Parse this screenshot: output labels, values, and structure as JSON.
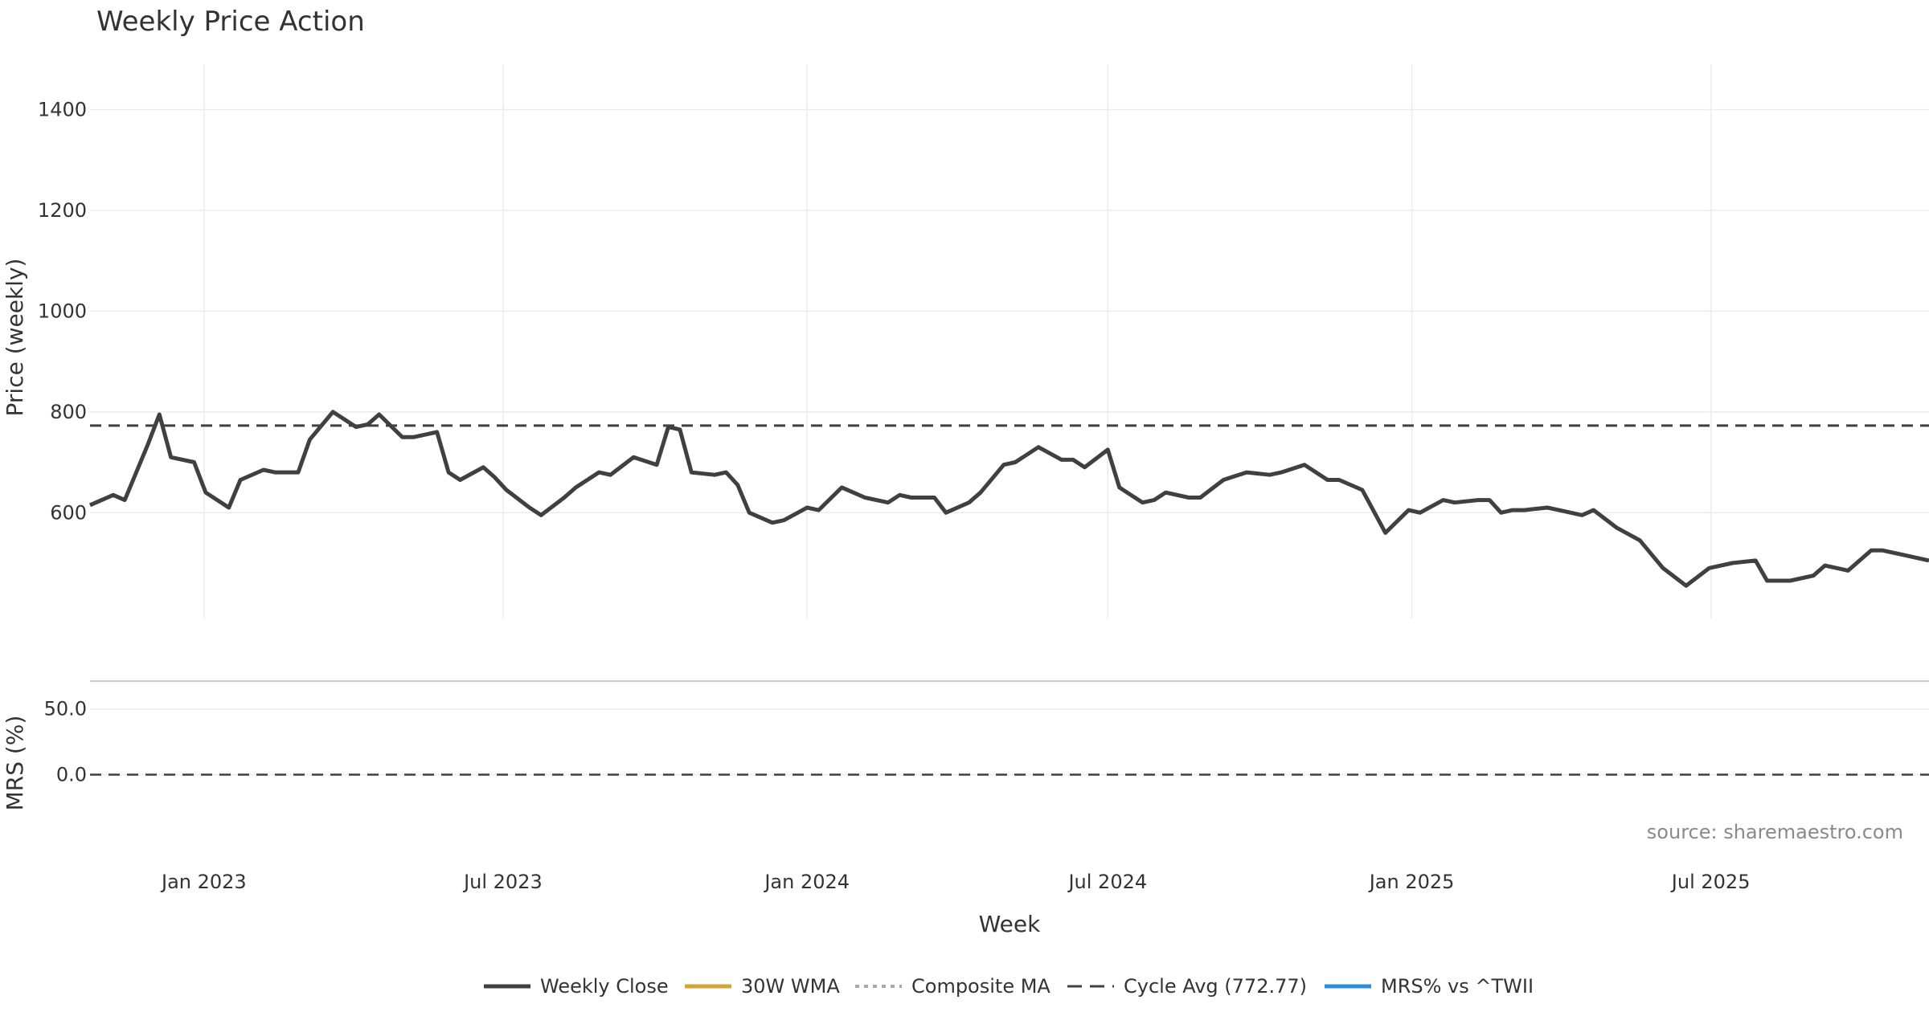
{
  "chart_data": {
    "type": "line",
    "title": "Weekly Price Action",
    "xlabel": "Week",
    "source": "source: sharemaestro.com",
    "x_ticks": [
      "Jan 2023",
      "Jul 2023",
      "Jan 2024",
      "Jul 2024",
      "Jan 2025",
      "Jul 2025"
    ],
    "x_range": [
      "2022-10-24",
      "2025-11-10"
    ],
    "price_panel": {
      "ylabel": "Price (weekly)",
      "ylim": [
        390,
        1490
      ],
      "y_ticks": [
        600,
        800,
        1000,
        1200,
        1400
      ],
      "grid": true,
      "cycle_avg": 772.77
    },
    "mrs_panel": {
      "ylabel": "MRS (%)",
      "ylim": [
        -40,
        70
      ],
      "y_ticks": [
        0.0,
        50.0
      ],
      "zero_line": 0
    },
    "legend": {
      "placement": "bottom-center",
      "items": [
        {
          "label": "Weekly Close",
          "color": "#404040",
          "style": "solid"
        },
        {
          "label": "30W WMA",
          "color": "#d6a431",
          "style": "solid"
        },
        {
          "label": "Composite MA",
          "color": "#aaaaaa",
          "style": "dotted"
        },
        {
          "label": "Cycle Avg (772.77)",
          "color": "#404040",
          "style": "dashed"
        },
        {
          "label": "MRS% vs ^TWII",
          "color": "#2b8ce0",
          "style": "solid"
        }
      ]
    },
    "series": [
      {
        "name": "Weekly Close",
        "color": "#404040",
        "points": [
          [
            "2022-10-24",
            615
          ],
          [
            "2022-11-07",
            635
          ],
          [
            "2022-11-14",
            625
          ],
          [
            "2022-11-28",
            735
          ],
          [
            "2022-12-05",
            795
          ],
          [
            "2022-12-12",
            710
          ],
          [
            "2022-12-26",
            700
          ],
          [
            "2023-01-02",
            640
          ],
          [
            "2023-01-16",
            610
          ],
          [
            "2023-01-23",
            665
          ],
          [
            "2023-02-06",
            685
          ],
          [
            "2023-02-13",
            680
          ],
          [
            "2023-02-27",
            680
          ],
          [
            "2023-03-06",
            745
          ],
          [
            "2023-03-20",
            800
          ],
          [
            "2023-04-03",
            770
          ],
          [
            "2023-04-10",
            775
          ],
          [
            "2023-04-17",
            795
          ],
          [
            "2023-05-01",
            750
          ],
          [
            "2023-05-08",
            750
          ],
          [
            "2023-05-22",
            760
          ],
          [
            "2023-05-29",
            680
          ],
          [
            "2023-06-05",
            665
          ],
          [
            "2023-06-19",
            690
          ],
          [
            "2023-06-26",
            670
          ],
          [
            "2023-07-03",
            645
          ],
          [
            "2023-07-17",
            610
          ],
          [
            "2023-07-24",
            595
          ],
          [
            "2023-08-07",
            630
          ],
          [
            "2023-08-14",
            650
          ],
          [
            "2023-08-28",
            680
          ],
          [
            "2023-09-04",
            675
          ],
          [
            "2023-09-18",
            710
          ],
          [
            "2023-10-02",
            695
          ],
          [
            "2023-10-09",
            770
          ],
          [
            "2023-10-16",
            765
          ],
          [
            "2023-10-23",
            680
          ],
          [
            "2023-11-06",
            675
          ],
          [
            "2023-11-13",
            680
          ],
          [
            "2023-11-20",
            655
          ],
          [
            "2023-11-27",
            600
          ],
          [
            "2023-12-11",
            580
          ],
          [
            "2023-12-18",
            585
          ],
          [
            "2024-01-01",
            610
          ],
          [
            "2024-01-08",
            605
          ],
          [
            "2024-01-22",
            650
          ],
          [
            "2024-01-29",
            640
          ],
          [
            "2024-02-05",
            630
          ],
          [
            "2024-02-19",
            620
          ],
          [
            "2024-02-26",
            635
          ],
          [
            "2024-03-04",
            630
          ],
          [
            "2024-03-18",
            630
          ],
          [
            "2024-03-25",
            600
          ],
          [
            "2024-04-08",
            620
          ],
          [
            "2024-04-15",
            640
          ],
          [
            "2024-04-29",
            695
          ],
          [
            "2024-05-06",
            700
          ],
          [
            "2024-05-20",
            730
          ],
          [
            "2024-06-03",
            705
          ],
          [
            "2024-06-10",
            705
          ],
          [
            "2024-06-17",
            690
          ],
          [
            "2024-07-01",
            725
          ],
          [
            "2024-07-08",
            650
          ],
          [
            "2024-07-22",
            620
          ],
          [
            "2024-07-29",
            625
          ],
          [
            "2024-08-05",
            640
          ],
          [
            "2024-08-19",
            630
          ],
          [
            "2024-08-26",
            630
          ],
          [
            "2024-09-09",
            665
          ],
          [
            "2024-09-23",
            680
          ],
          [
            "2024-10-07",
            675
          ],
          [
            "2024-10-14",
            680
          ],
          [
            "2024-10-28",
            695
          ],
          [
            "2024-11-11",
            665
          ],
          [
            "2024-11-18",
            665
          ],
          [
            "2024-12-02",
            645
          ],
          [
            "2024-12-16",
            560
          ],
          [
            "2024-12-30",
            605
          ],
          [
            "2025-01-06",
            600
          ],
          [
            "2025-01-20",
            625
          ],
          [
            "2025-01-27",
            620
          ],
          [
            "2025-02-10",
            625
          ],
          [
            "2025-02-17",
            625
          ],
          [
            "2025-02-24",
            600
          ],
          [
            "2025-03-03",
            605
          ],
          [
            "2025-03-10",
            605
          ],
          [
            "2025-03-24",
            610
          ],
          [
            "2025-03-31",
            605
          ],
          [
            "2025-04-14",
            595
          ],
          [
            "2025-04-21",
            605
          ],
          [
            "2025-05-05",
            570
          ],
          [
            "2025-05-19",
            545
          ],
          [
            "2025-06-02",
            490
          ],
          [
            "2025-06-16",
            455
          ],
          [
            "2025-06-30",
            490
          ],
          [
            "2025-07-14",
            500
          ],
          [
            "2025-07-28",
            505
          ],
          [
            "2025-08-04",
            465
          ],
          [
            "2025-08-18",
            465
          ],
          [
            "2025-09-01",
            475
          ],
          [
            "2025-09-08",
            495
          ],
          [
            "2025-09-22",
            485
          ],
          [
            "2025-10-06",
            525
          ],
          [
            "2025-10-13",
            525
          ],
          [
            "2025-10-27",
            515
          ],
          [
            "2025-11-10",
            505
          ]
        ]
      }
    ]
  }
}
